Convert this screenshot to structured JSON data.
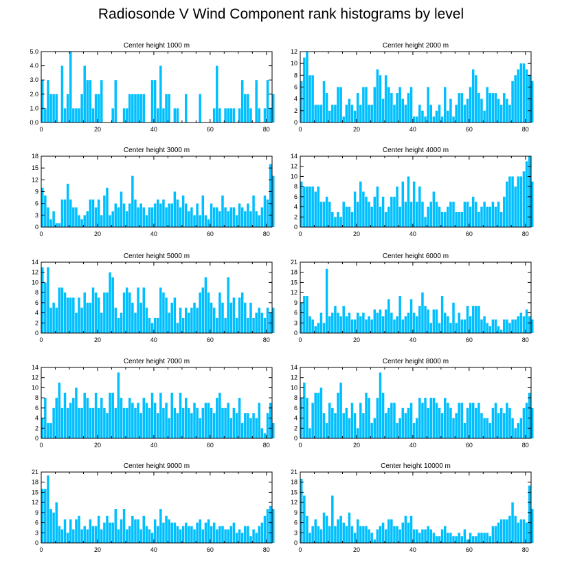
{
  "title": "Radiosonde V Wind Component rank histograms by level",
  "colors": {
    "bar": "#00bfff",
    "axis": "#000000",
    "background": "#ffffff"
  },
  "chart_data": [
    {
      "type": "bar",
      "title": "Center height 1000 m",
      "xlabel": "",
      "ylabel": "",
      "xlim": [
        0,
        82
      ],
      "xticks": [
        0,
        20,
        40,
        60,
        80
      ],
      "ylim": [
        0,
        5
      ],
      "yticks": [
        0,
        1,
        2,
        3,
        4,
        5
      ],
      "ytick_labels": [
        "0.0",
        "1.0",
        "2.0",
        "3.0",
        "4.0",
        "5.0"
      ],
      "values": [
        3,
        1,
        3,
        2,
        2,
        2,
        0,
        4,
        1,
        2,
        5,
        1,
        1,
        1,
        2,
        4,
        3,
        3,
        1,
        2,
        2,
        3,
        0,
        0,
        0,
        1,
        3,
        0,
        0,
        1,
        1,
        2,
        2,
        2,
        2,
        2,
        2,
        0,
        0,
        3,
        3,
        1,
        4,
        1,
        2,
        2,
        0,
        1,
        1,
        0,
        0,
        2,
        0,
        0,
        0,
        0,
        2,
        0,
        0,
        0,
        0,
        1,
        4,
        1,
        0,
        1,
        1,
        1,
        1,
        0,
        1,
        3,
        2,
        2,
        1,
        0,
        3,
        1,
        0,
        1,
        3,
        1,
        2
      ]
    },
    {
      "type": "bar",
      "title": "Center height 2000 m",
      "xlabel": "",
      "ylabel": "",
      "xlim": [
        0,
        82
      ],
      "xticks": [
        0,
        20,
        40,
        60,
        80
      ],
      "ylim": [
        0,
        12
      ],
      "yticks": [
        0,
        2,
        4,
        6,
        8,
        10,
        12
      ],
      "ytick_labels": [
        "0",
        "2",
        "4",
        "6",
        "8",
        "10",
        "12"
      ],
      "values": [
        7,
        11,
        12,
        8,
        8,
        3,
        3,
        3,
        7,
        5,
        2,
        3,
        3,
        6,
        6,
        1,
        3,
        4,
        3,
        2,
        5,
        3,
        6,
        6,
        3,
        3,
        6,
        9,
        8,
        4,
        8,
        6,
        5,
        3,
        5,
        6,
        4,
        3,
        5,
        6,
        1,
        1,
        3,
        2,
        1,
        6,
        3,
        1,
        2,
        3,
        1,
        6,
        2,
        4,
        1,
        3,
        5,
        5,
        3,
        4,
        6,
        9,
        8,
        5,
        4,
        2,
        6,
        5,
        5,
        5,
        4,
        3,
        5,
        4,
        3,
        7,
        8,
        9,
        10,
        10,
        9,
        8,
        7
      ]
    },
    {
      "type": "bar",
      "title": "Center height 3000 m",
      "xlabel": "",
      "ylabel": "",
      "xlim": [
        0,
        82
      ],
      "xticks": [
        0,
        20,
        40,
        60,
        80
      ],
      "ylim": [
        0,
        18
      ],
      "yticks": [
        0,
        3,
        6,
        9,
        12,
        15,
        18
      ],
      "ytick_labels": [
        "0",
        "3",
        "6",
        "9",
        "12",
        "15",
        "18"
      ],
      "values": [
        10,
        8,
        5,
        2,
        4,
        1,
        1,
        7,
        7,
        11,
        7,
        5,
        5,
        3,
        2,
        3,
        4,
        7,
        7,
        5,
        7,
        3,
        8,
        10,
        3,
        4,
        6,
        5,
        9,
        6,
        4,
        6,
        13,
        7,
        5,
        6,
        5,
        3,
        5,
        5,
        6,
        7,
        6,
        7,
        5,
        6,
        6,
        9,
        7,
        5,
        8,
        6,
        4,
        5,
        3,
        6,
        3,
        8,
        3,
        2,
        6,
        5,
        5,
        4,
        8,
        5,
        4,
        5,
        5,
        3,
        6,
        5,
        4,
        6,
        4,
        8,
        4,
        3,
        5,
        8,
        7,
        16,
        13
      ]
    },
    {
      "type": "bar",
      "title": "Center height 4000 m",
      "xlabel": "",
      "ylabel": "",
      "xlim": [
        0,
        82
      ],
      "xticks": [
        0,
        20,
        40,
        60,
        80
      ],
      "ylim": [
        0,
        14
      ],
      "yticks": [
        0,
        2,
        4,
        6,
        8,
        10,
        12,
        14
      ],
      "ytick_labels": [
        "0",
        "2",
        "4",
        "6",
        "8",
        "10",
        "12",
        "14"
      ],
      "values": [
        9,
        8,
        8,
        8,
        8,
        7,
        8,
        5,
        5,
        6,
        5,
        3,
        2,
        3,
        2,
        5,
        4,
        4,
        3,
        7,
        5,
        9,
        7,
        6,
        5,
        4,
        6,
        8,
        4,
        6,
        3,
        4,
        6,
        6,
        8,
        4,
        9,
        5,
        10,
        5,
        9,
        5,
        8,
        5,
        2,
        4,
        5,
        7,
        5,
        4,
        3,
        3,
        4,
        5,
        5,
        3,
        3,
        3,
        5,
        5,
        4,
        6,
        5,
        3,
        4,
        5,
        4,
        4,
        5,
        4,
        5,
        3,
        6,
        9,
        10,
        10,
        8,
        10,
        10,
        11,
        13,
        14,
        9
      ]
    },
    {
      "type": "bar",
      "title": "Center height 5000 m",
      "xlabel": "",
      "ylabel": "",
      "xlim": [
        0,
        82
      ],
      "xticks": [
        0,
        20,
        40,
        60,
        80
      ],
      "ylim": [
        0,
        14
      ],
      "yticks": [
        0,
        2,
        4,
        6,
        8,
        10,
        12,
        14
      ],
      "ytick_labels": [
        "0",
        "2",
        "4",
        "6",
        "8",
        "10",
        "12",
        "14"
      ],
      "values": [
        13,
        10,
        13,
        5,
        6,
        5,
        9,
        9,
        8,
        7,
        7,
        7,
        4,
        7,
        5,
        8,
        6,
        6,
        9,
        8,
        7,
        4,
        8,
        8,
        12,
        11,
        5,
        3,
        4,
        8,
        9,
        8,
        6,
        4,
        9,
        6,
        9,
        5,
        3,
        2,
        3,
        3,
        9,
        8,
        7,
        4,
        6,
        7,
        2,
        5,
        3,
        5,
        4,
        5,
        6,
        5,
        8,
        9,
        11,
        8,
        6,
        5,
        3,
        8,
        6,
        3,
        11,
        6,
        7,
        3,
        7,
        8,
        6,
        3,
        6,
        3,
        4,
        5,
        4,
        3,
        5,
        4,
        5
      ]
    },
    {
      "type": "bar",
      "title": "Center height 6000 m",
      "xlabel": "",
      "ylabel": "",
      "xlim": [
        0,
        82
      ],
      "xticks": [
        0,
        20,
        40,
        60,
        80
      ],
      "ylim": [
        0,
        21
      ],
      "yticks": [
        0,
        3,
        6,
        9,
        12,
        15,
        18,
        21
      ],
      "ytick_labels": [
        "0",
        "3",
        "6",
        "9",
        "12",
        "15",
        "18",
        "21"
      ],
      "values": [
        9,
        11,
        11,
        5,
        4,
        2,
        3,
        6,
        3,
        19,
        5,
        6,
        8,
        6,
        5,
        8,
        5,
        6,
        4,
        4,
        6,
        5,
        6,
        4,
        5,
        4,
        7,
        6,
        7,
        5,
        7,
        10,
        6,
        4,
        5,
        11,
        4,
        5,
        6,
        10,
        6,
        5,
        8,
        12,
        8,
        7,
        3,
        7,
        7,
        3,
        11,
        6,
        5,
        3,
        9,
        3,
        6,
        4,
        4,
        8,
        5,
        8,
        8,
        8,
        4,
        5,
        3,
        2,
        4,
        4,
        2,
        1,
        4,
        4,
        3,
        4,
        4,
        5,
        6,
        5,
        7,
        5,
        4
      ]
    },
    {
      "type": "bar",
      "title": "Center height 7000 m",
      "xlabel": "",
      "ylabel": "",
      "xlim": [
        0,
        82
      ],
      "xticks": [
        0,
        20,
        40,
        60,
        80
      ],
      "ylim": [
        0,
        14
      ],
      "yticks": [
        0,
        2,
        4,
        6,
        8,
        10,
        12,
        14
      ],
      "ytick_labels": [
        "0",
        "2",
        "4",
        "6",
        "8",
        "10",
        "12",
        "14"
      ],
      "values": [
        4,
        8,
        3,
        3,
        6,
        8,
        11,
        6,
        9,
        6,
        7,
        8,
        10,
        6,
        6,
        9,
        8,
        6,
        6,
        9,
        6,
        8,
        6,
        5,
        9,
        9,
        6,
        13,
        8,
        6,
        6,
        8,
        7,
        6,
        7,
        5,
        8,
        7,
        6,
        9,
        7,
        5,
        9,
        6,
        7,
        4,
        9,
        6,
        5,
        9,
        6,
        8,
        6,
        5,
        7,
        6,
        4,
        6,
        7,
        7,
        6,
        5,
        8,
        9,
        6,
        6,
        7,
        4,
        6,
        5,
        8,
        3,
        5,
        5,
        4,
        5,
        4,
        7,
        2,
        1,
        5,
        7,
        3
      ]
    },
    {
      "type": "bar",
      "title": "Center height 8000 m",
      "xlabel": "",
      "ylabel": "",
      "xlim": [
        0,
        82
      ],
      "xticks": [
        0,
        20,
        40,
        60,
        80
      ],
      "ylim": [
        0,
        14
      ],
      "yticks": [
        0,
        2,
        4,
        6,
        8,
        10,
        12,
        14
      ],
      "ytick_labels": [
        "0",
        "2",
        "4",
        "6",
        "8",
        "10",
        "12",
        "14"
      ],
      "values": [
        8,
        11,
        8,
        2,
        7,
        9,
        9,
        10,
        5,
        3,
        7,
        6,
        5,
        9,
        11,
        5,
        6,
        4,
        7,
        5,
        2,
        7,
        5,
        9,
        8,
        3,
        4,
        8,
        13,
        9,
        5,
        6,
        7,
        7,
        3,
        4,
        6,
        5,
        6,
        7,
        3,
        4,
        8,
        7,
        8,
        6,
        8,
        8,
        7,
        6,
        5,
        8,
        7,
        6,
        4,
        5,
        7,
        7,
        3,
        6,
        7,
        7,
        6,
        7,
        5,
        4,
        4,
        3,
        6,
        7,
        5,
        6,
        5,
        7,
        6,
        4,
        2,
        3,
        4,
        6,
        7,
        9,
        6
      ]
    },
    {
      "type": "bar",
      "title": "Center height 9000 m",
      "xlabel": "",
      "ylabel": "",
      "xlim": [
        0,
        82
      ],
      "xticks": [
        0,
        20,
        40,
        60,
        80
      ],
      "ylim": [
        0,
        21
      ],
      "yticks": [
        0,
        3,
        6,
        9,
        12,
        15,
        18,
        21
      ],
      "ytick_labels": [
        "0",
        "3",
        "6",
        "9",
        "12",
        "15",
        "18",
        "21"
      ],
      "values": [
        16,
        16,
        20,
        10,
        9,
        12,
        5,
        4,
        7,
        3,
        7,
        4,
        7,
        8,
        4,
        5,
        4,
        7,
        5,
        5,
        8,
        4,
        6,
        8,
        6,
        6,
        10,
        4,
        7,
        10,
        4,
        5,
        8,
        7,
        7,
        4,
        8,
        5,
        4,
        3,
        7,
        5,
        10,
        6,
        8,
        7,
        6,
        6,
        5,
        4,
        5,
        6,
        5,
        5,
        4,
        6,
        7,
        4,
        6,
        7,
        5,
        6,
        4,
        5,
        5,
        4,
        4,
        5,
        6,
        3,
        4,
        3,
        5,
        5,
        2,
        4,
        3,
        5,
        6,
        8,
        10,
        11,
        10
      ]
    },
    {
      "type": "bar",
      "title": "Center height 10000 m",
      "xlabel": "",
      "ylabel": "",
      "xlim": [
        0,
        82
      ],
      "xticks": [
        0,
        20,
        40,
        60,
        80
      ],
      "ylim": [
        0,
        21
      ],
      "yticks": [
        0,
        3,
        6,
        9,
        12,
        15,
        18,
        21
      ],
      "ytick_labels": [
        "0",
        "3",
        "6",
        "9",
        "12",
        "15",
        "18",
        "21"
      ],
      "values": [
        19,
        14,
        8,
        3,
        5,
        7,
        5,
        4,
        9,
        8,
        5,
        14,
        5,
        7,
        8,
        6,
        5,
        9,
        5,
        3,
        7,
        5,
        5,
        5,
        4,
        3,
        1,
        4,
        5,
        6,
        4,
        7,
        7,
        5,
        5,
        4,
        6,
        8,
        6,
        8,
        4,
        4,
        3,
        4,
        4,
        5,
        4,
        3,
        2,
        2,
        4,
        5,
        3,
        3,
        2,
        2,
        3,
        2,
        4,
        1,
        3,
        2,
        2,
        3,
        3,
        3,
        3,
        2,
        5,
        5,
        6,
        7,
        7,
        7,
        8,
        12,
        8,
        6,
        7,
        7,
        6,
        17,
        10
      ]
    }
  ]
}
